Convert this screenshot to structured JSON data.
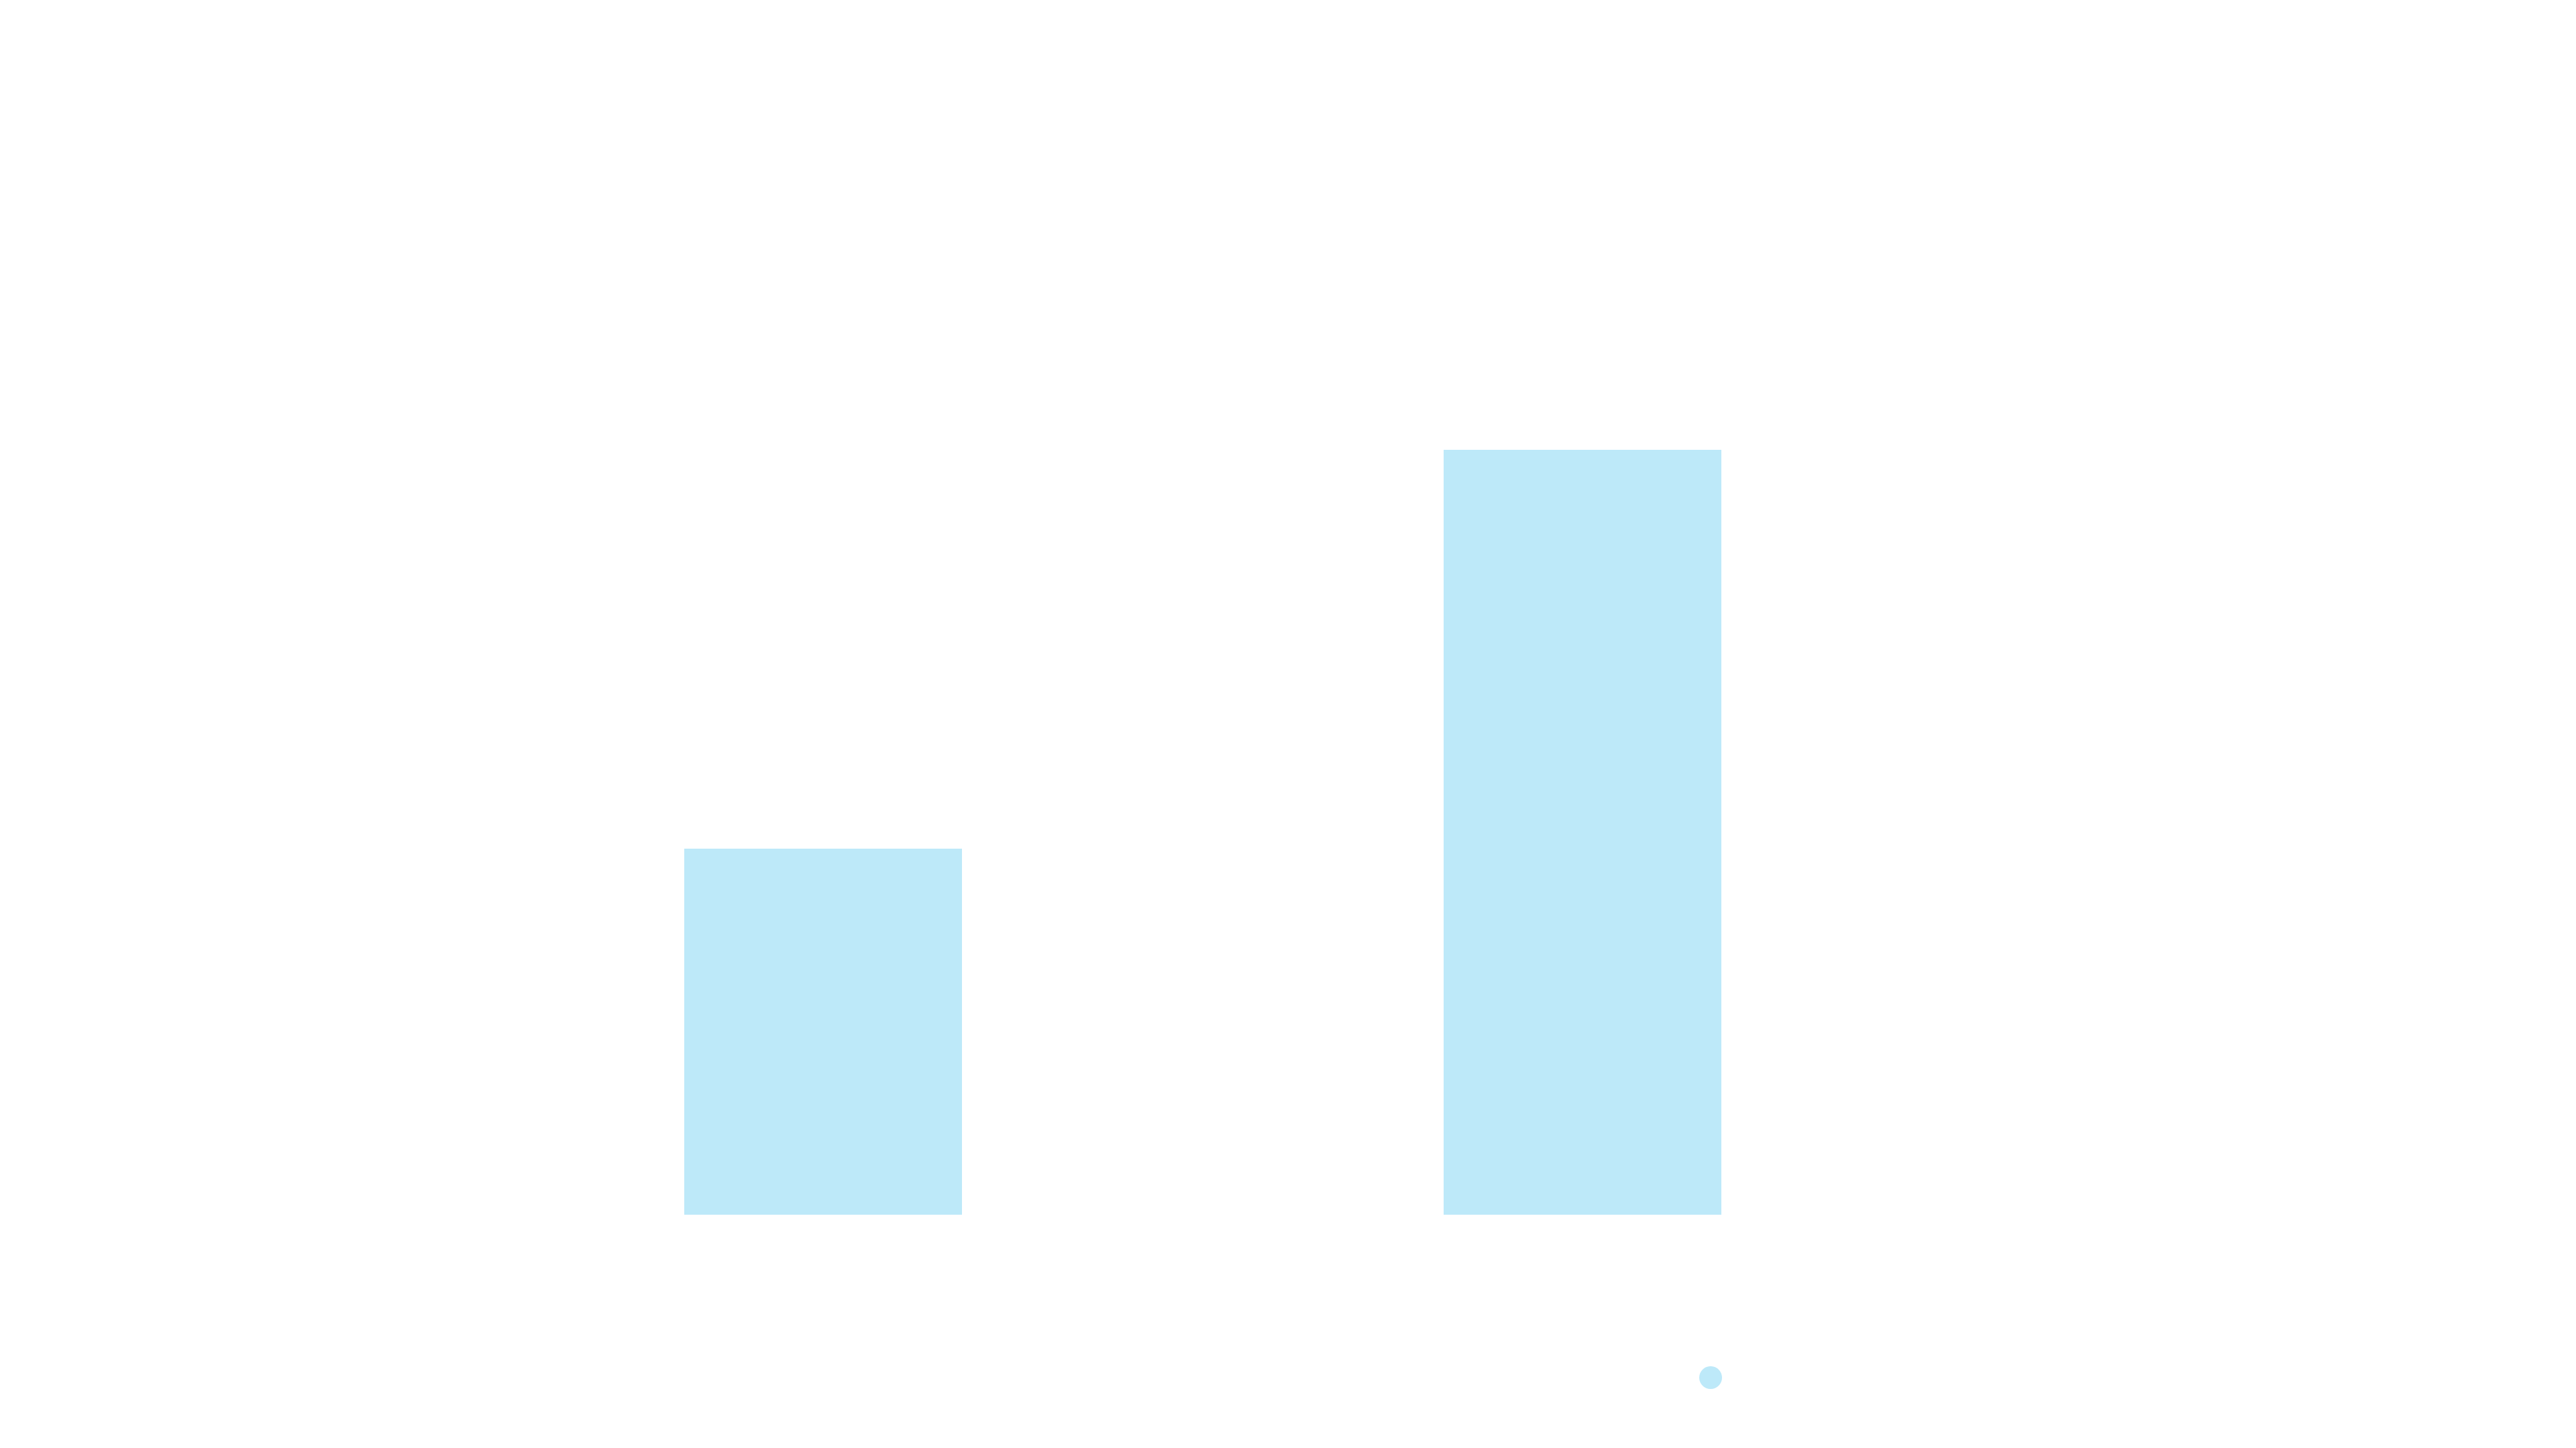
{
  "chart_data": {
    "type": "bar",
    "categories": [
      "",
      ""
    ],
    "values": [
      3.35,
      7.0
    ],
    "ylim": [
      0,
      10
    ],
    "grid": false,
    "legend": "bottom-right",
    "series": [
      {
        "values": [
          3.35,
          7.0
        ],
        "color": "#bde9f9"
      }
    ],
    "colors": {
      "bar": "#bde9f9",
      "background": "#ffffff"
    }
  }
}
